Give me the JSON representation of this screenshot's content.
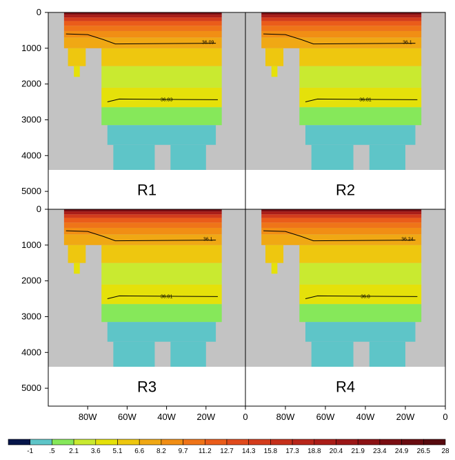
{
  "chart_data": {
    "type": "heatmap",
    "ylim": [
      0,
      5500
    ],
    "yticks": [
      0,
      1000,
      2000,
      3000,
      4000,
      5000
    ],
    "ytick_labels": [
      "0",
      "1000",
      "2000",
      "3000",
      "4000",
      "5000"
    ],
    "xlim": [
      -100,
      0
    ],
    "xticks": [
      -80,
      -60,
      -40,
      -20,
      0
    ],
    "xtick_labels": [
      "80W",
      "60W",
      "40W",
      "20W",
      "0"
    ],
    "colorbar": {
      "labels": [
        "-1",
        ".5",
        "2.1",
        "3.6",
        "5.1",
        "6.6",
        "8.2",
        "9.7",
        "11.2",
        "12.7",
        "14.3",
        "15.8",
        "17.3",
        "18.8",
        "20.4",
        "21.9",
        "23.4",
        "24.9",
        "26.5",
        "28"
      ],
      "colors": [
        "#06154a",
        "#5ec5c8",
        "#86e85a",
        "#c9ea30",
        "#e5e10a",
        "#eec70f",
        "#f0a814",
        "#f18e14",
        "#ef7418",
        "#ea5c1a",
        "#e04a1c",
        "#d33c1c",
        "#c5301b",
        "#b8261a",
        "#aa1d18",
        "#9b1717",
        "#8b1214",
        "#7a0e12",
        "#690b10",
        "#570a0e"
      ]
    },
    "panels": [
      {
        "label": "R1",
        "contours": [
          {
            "label": "36.09",
            "level": 36.09
          },
          {
            "label": "36.83",
            "level": 36.83
          }
        ]
      },
      {
        "label": "R2",
        "contours": [
          {
            "label": "36.1",
            "level": 36.1
          },
          {
            "label": "36.81",
            "level": 36.81
          }
        ]
      },
      {
        "label": "R3",
        "contours": [
          {
            "label": "36.1",
            "level": 36.1
          },
          {
            "label": "36.81",
            "level": 36.81
          }
        ]
      },
      {
        "label": "R4",
        "contours": [
          {
            "label": "36.24",
            "level": 36.24
          },
          {
            "label": "36.8",
            "level": 36.8
          }
        ]
      }
    ]
  }
}
